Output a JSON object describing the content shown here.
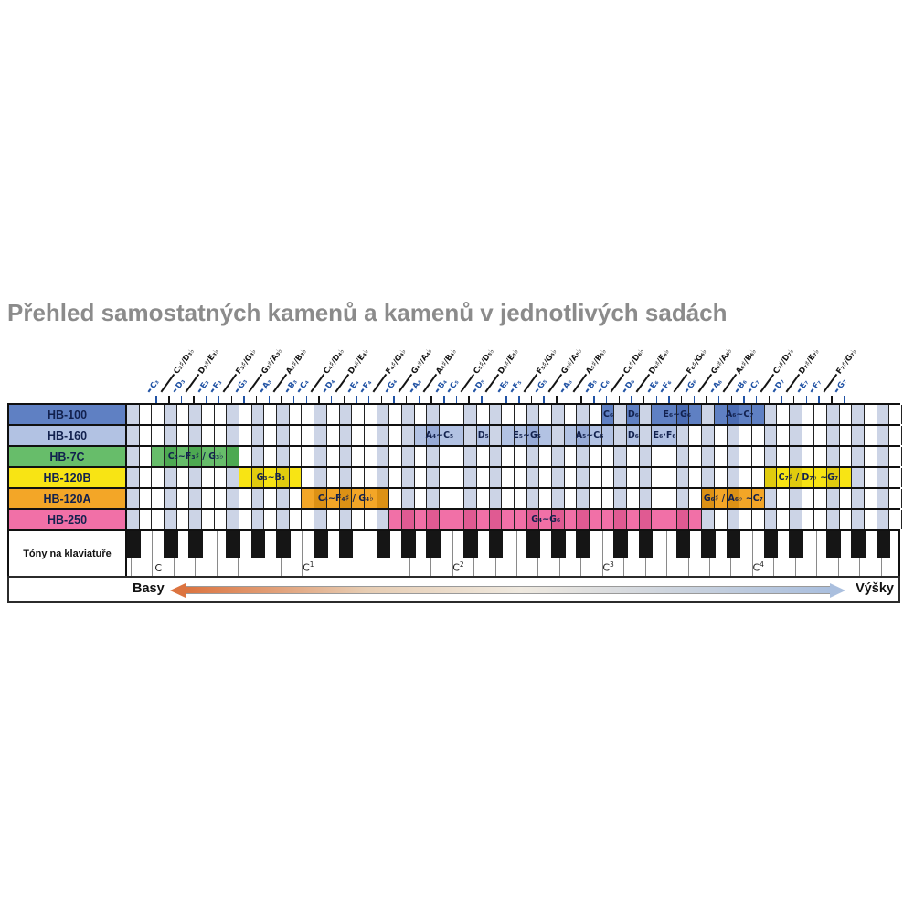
{
  "title": "Přehled samostatných kamenů a kamenů v jednotlivých sadách",
  "rows": [
    {
      "label": "HB-100",
      "color": "#5f80c3",
      "stripe": "#4b6cb3",
      "blocks": [
        {
          "label": "C₆",
          "start": 38,
          "span": 1
        },
        {
          "label": "D₆",
          "start": 40,
          "span": 1
        },
        {
          "label": "E₆~G₆",
          "start": 42,
          "span": 4
        },
        {
          "label": "A₆~C₇",
          "start": 47,
          "span": 4
        }
      ]
    },
    {
      "label": "HB-160",
      "color": "#b2c2e3",
      "stripe": "#96aad6",
      "blocks": [
        {
          "label": "A₄~C₅",
          "start": 23,
          "span": 4
        },
        {
          "label": "D₅",
          "start": 28,
          "span": 1
        },
        {
          "label": "E₅~G₅",
          "start": 30,
          "span": 4
        },
        {
          "label": "A₅~C₆",
          "start": 35,
          "span": 4
        },
        {
          "label": "D₆",
          "start": 40,
          "span": 1
        },
        {
          "label": "E₆·F₆",
          "start": 42,
          "span": 2
        }
      ]
    },
    {
      "label": "HB-7C",
      "color": "#67bd6a",
      "stripe": "#4da951",
      "blocks": [
        {
          "label": "C₃~F₃♯ / G₃♭",
          "start": 2,
          "span": 7
        }
      ]
    },
    {
      "label": "HB-120B",
      "color": "#f8e414",
      "stripe": "#e0cb0e",
      "blocks": [
        {
          "label": "G₃~B₃",
          "start": 9,
          "span": 5
        },
        {
          "label": "C₇♯ / D₇♭ ~G₇",
          "start": 51,
          "span": 7
        }
      ]
    },
    {
      "label": "HB-120A",
      "color": "#f3a627",
      "stripe": "#dc9115",
      "blocks": [
        {
          "label": "C₄~F₄♯ / G₄♭",
          "start": 14,
          "span": 7
        },
        {
          "label": "G₆♯ / A₆♭ ~C₇",
          "start": 46,
          "span": 5
        }
      ]
    },
    {
      "label": "HB-250",
      "color": "#f170a7",
      "stripe": "#e05a92",
      "blocks": [
        {
          "label": "G₄~G₆",
          "start": 21,
          "span": 25
        }
      ]
    }
  ],
  "note_labels": [
    {
      "col": 2,
      "text": "C₃",
      "type": "natural"
    },
    {
      "col": 3,
      "text": "C₃♯/D₃♭",
      "type": "sharp"
    },
    {
      "col": 4,
      "text": "D₃",
      "type": "natural"
    },
    {
      "col": 5,
      "text": "D₃♯/E₃♭",
      "type": "sharp"
    },
    {
      "col": 6,
      "text": "E₃",
      "type": "natural"
    },
    {
      "col": 7,
      "text": "F₃",
      "type": "natural"
    },
    {
      "col": 8,
      "text": "F₃♯/G₃♭",
      "type": "sharp"
    },
    {
      "col": 9,
      "text": "G₃",
      "type": "natural"
    },
    {
      "col": 10,
      "text": "G₃♯/A₃♭",
      "type": "sharp"
    },
    {
      "col": 11,
      "text": "A₃",
      "type": "natural"
    },
    {
      "col": 12,
      "text": "A₃♯/B₃♭",
      "type": "sharp"
    },
    {
      "col": 13,
      "text": "B₃",
      "type": "natural"
    },
    {
      "col": 14,
      "text": "C₄",
      "type": "natural"
    },
    {
      "col": 15,
      "text": "C₄♯/D₄♭",
      "type": "sharp"
    },
    {
      "col": 16,
      "text": "D₄",
      "type": "natural"
    },
    {
      "col": 17,
      "text": "D₄♯/E₄♭",
      "type": "sharp"
    },
    {
      "col": 18,
      "text": "E₄",
      "type": "natural"
    },
    {
      "col": 19,
      "text": "F₄",
      "type": "natural"
    },
    {
      "col": 20,
      "text": "F₄♯/G₄♭",
      "type": "sharp"
    },
    {
      "col": 21,
      "text": "G₄",
      "type": "natural"
    },
    {
      "col": 22,
      "text": "G₄♯/A₄♭",
      "type": "sharp"
    },
    {
      "col": 23,
      "text": "A₄",
      "type": "natural"
    },
    {
      "col": 24,
      "text": "A₄♯/B₄♭",
      "type": "sharp"
    },
    {
      "col": 25,
      "text": "B₄",
      "type": "natural"
    },
    {
      "col": 26,
      "text": "C₅",
      "type": "natural"
    },
    {
      "col": 27,
      "text": "C₅♯/D₅♭",
      "type": "sharp"
    },
    {
      "col": 28,
      "text": "D₅",
      "type": "natural"
    },
    {
      "col": 29,
      "text": "D₅♯/E₅♭",
      "type": "sharp"
    },
    {
      "col": 30,
      "text": "E₅",
      "type": "natural"
    },
    {
      "col": 31,
      "text": "F₅",
      "type": "natural"
    },
    {
      "col": 32,
      "text": "F₅♯/G₅♭",
      "type": "sharp"
    },
    {
      "col": 33,
      "text": "G₅",
      "type": "natural"
    },
    {
      "col": 34,
      "text": "G₅♯/A₅♭",
      "type": "sharp"
    },
    {
      "col": 35,
      "text": "A₅",
      "type": "natural"
    },
    {
      "col": 36,
      "text": "A₅♯/B₅♭",
      "type": "sharp"
    },
    {
      "col": 37,
      "text": "B₅",
      "type": "natural"
    },
    {
      "col": 38,
      "text": "C₆",
      "type": "natural"
    },
    {
      "col": 39,
      "text": "C₆♯/D₆♭",
      "type": "sharp"
    },
    {
      "col": 40,
      "text": "D₆",
      "type": "natural"
    },
    {
      "col": 41,
      "text": "D₆♯/E₆♭",
      "type": "sharp"
    },
    {
      "col": 42,
      "text": "E₆",
      "type": "natural"
    },
    {
      "col": 43,
      "text": "F₆",
      "type": "natural"
    },
    {
      "col": 44,
      "text": "F₆♯/G₆♭",
      "type": "sharp"
    },
    {
      "col": 45,
      "text": "G₆",
      "type": "natural"
    },
    {
      "col": 46,
      "text": "G₆♯/A₆♭",
      "type": "sharp"
    },
    {
      "col": 47,
      "text": "A₆",
      "type": "natural"
    },
    {
      "col": 48,
      "text": "A₆♯/B₆♭",
      "type": "sharp"
    },
    {
      "col": 49,
      "text": "B₆",
      "type": "natural"
    },
    {
      "col": 50,
      "text": "C₇",
      "type": "natural"
    },
    {
      "col": 51,
      "text": "C₇♯/D₇♭",
      "type": "sharp"
    },
    {
      "col": 52,
      "text": "D₇",
      "type": "natural"
    },
    {
      "col": 53,
      "text": "D₇♯/E₇♭",
      "type": "sharp"
    },
    {
      "col": 54,
      "text": "E₇",
      "type": "natural"
    },
    {
      "col": 55,
      "text": "F₇",
      "type": "natural"
    },
    {
      "col": 56,
      "text": "F₇♯/G₇♭",
      "type": "sharp"
    },
    {
      "col": 57,
      "text": "G₇",
      "type": "natural"
    }
  ],
  "keyboard": {
    "label": "Tóny na klaviatuře",
    "octave_marks": [
      {
        "text": "C",
        "sup": "",
        "col": 2
      },
      {
        "text": "C",
        "sup": "1",
        "col": 14
      },
      {
        "text": "C",
        "sup": "2",
        "col": 26
      },
      {
        "text": "C",
        "sup": "3",
        "col": 38
      },
      {
        "text": "C",
        "sup": "4",
        "col": 50
      }
    ]
  },
  "footer": {
    "bass": "Basy",
    "treble": "Výšky"
  },
  "colors": {
    "shaded_column": "#ccd4e6",
    "white_column": "#ffffff",
    "grid_line": "#222222",
    "natural_label": "#2052a4",
    "sharp_label": "#141414",
    "header_text": "#12214e",
    "block_text": "#12214e",
    "title": "#8b8b8b",
    "black_key": "#151515",
    "arrow_left": "#dc7440",
    "arrow_mid": "#efe9df",
    "arrow_right": "#aabfde"
  }
}
